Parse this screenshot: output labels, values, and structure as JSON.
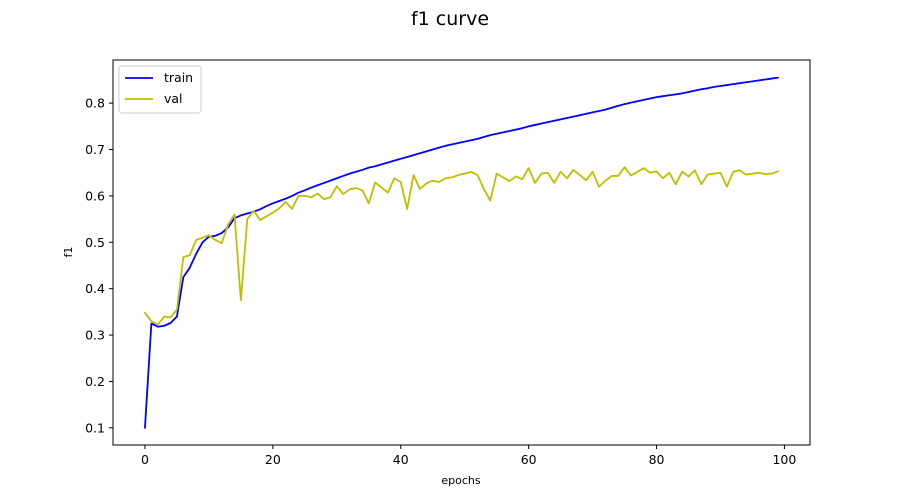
{
  "chart_data": {
    "type": "line",
    "title": "f1 curve",
    "xlabel": "epochs",
    "ylabel": "f1",
    "xlim": [
      -5,
      104
    ],
    "ylim": [
      0.063,
      0.893
    ],
    "xticks": [
      0,
      20,
      40,
      60,
      80,
      100
    ],
    "yticks": [
      0.1,
      0.2,
      0.3,
      0.4,
      0.5,
      0.6,
      0.7,
      0.8
    ],
    "xtick_labels": [
      "0",
      "20",
      "40",
      "60",
      "80",
      "100"
    ],
    "ytick_labels": [
      "0.1",
      "0.2",
      "0.3",
      "0.4",
      "0.5",
      "0.6",
      "0.7",
      "0.8"
    ],
    "grid": false,
    "legend_position": "upper-left",
    "series": [
      {
        "name": "train",
        "color": "#0000ff",
        "values": [
          0.1,
          0.325,
          0.318,
          0.32,
          0.326,
          0.34,
          0.425,
          0.445,
          0.475,
          0.5,
          0.512,
          0.514,
          0.52,
          0.532,
          0.552,
          0.558,
          0.562,
          0.566,
          0.571,
          0.578,
          0.584,
          0.589,
          0.594,
          0.6,
          0.607,
          0.612,
          0.618,
          0.623,
          0.628,
          0.633,
          0.638,
          0.643,
          0.648,
          0.652,
          0.656,
          0.661,
          0.664,
          0.668,
          0.672,
          0.676,
          0.68,
          0.684,
          0.688,
          0.692,
          0.696,
          0.7,
          0.704,
          0.708,
          0.711,
          0.714,
          0.717,
          0.72,
          0.723,
          0.727,
          0.731,
          0.734,
          0.737,
          0.74,
          0.743,
          0.746,
          0.75,
          0.753,
          0.756,
          0.759,
          0.762,
          0.765,
          0.768,
          0.771,
          0.774,
          0.777,
          0.78,
          0.783,
          0.786,
          0.79,
          0.794,
          0.798,
          0.801,
          0.804,
          0.807,
          0.81,
          0.813,
          0.815,
          0.817,
          0.819,
          0.821,
          0.824,
          0.827,
          0.83,
          0.832,
          0.835,
          0.837,
          0.839,
          0.841,
          0.843,
          0.845,
          0.847,
          0.849,
          0.851,
          0.853,
          0.855
        ]
      },
      {
        "name": "val",
        "color": "#bfbf00",
        "values": [
          0.348,
          0.33,
          0.322,
          0.34,
          0.338,
          0.355,
          0.468,
          0.472,
          0.505,
          0.51,
          0.515,
          0.505,
          0.498,
          0.538,
          0.56,
          0.375,
          0.55,
          0.568,
          0.548,
          0.556,
          0.564,
          0.573,
          0.587,
          0.572,
          0.6,
          0.6,
          0.597,
          0.605,
          0.593,
          0.597,
          0.621,
          0.604,
          0.614,
          0.617,
          0.612,
          0.584,
          0.629,
          0.618,
          0.607,
          0.638,
          0.63,
          0.572,
          0.645,
          0.615,
          0.627,
          0.633,
          0.63,
          0.638,
          0.64,
          0.645,
          0.648,
          0.652,
          0.645,
          0.615,
          0.59,
          0.648,
          0.64,
          0.632,
          0.642,
          0.636,
          0.66,
          0.628,
          0.648,
          0.65,
          0.628,
          0.652,
          0.638,
          0.656,
          0.645,
          0.634,
          0.652,
          0.62,
          0.633,
          0.643,
          0.643,
          0.662,
          0.644,
          0.652,
          0.66,
          0.65,
          0.653,
          0.638,
          0.65,
          0.625,
          0.652,
          0.642,
          0.655,
          0.625,
          0.646,
          0.648,
          0.65,
          0.62,
          0.652,
          0.655,
          0.646,
          0.648,
          0.65,
          0.647,
          0.648,
          0.653
        ]
      }
    ]
  }
}
